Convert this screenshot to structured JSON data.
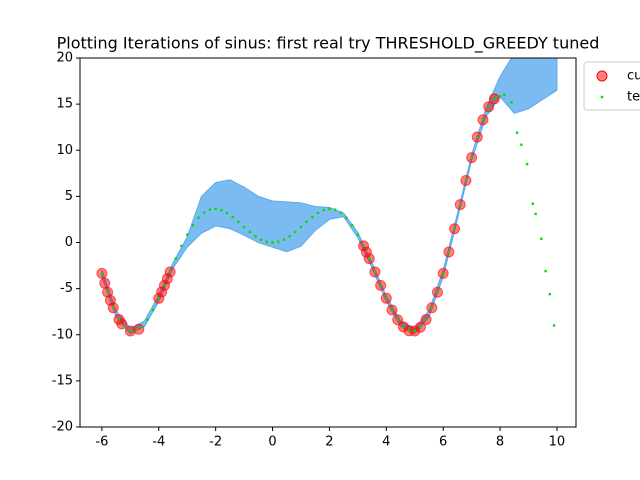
{
  "chart_data": {
    "type": "scatter",
    "title": "Plotting Iterations of sinus: first real try THRESHOLD_GREEDY tuned",
    "xlim": [
      -6.77,
      10.67
    ],
    "ylim": [
      -20,
      20
    ],
    "xticks": [
      -6,
      -4,
      -2,
      0,
      2,
      4,
      6,
      8,
      10
    ],
    "yticks": [
      -20,
      -15,
      -10,
      -5,
      0,
      5,
      10,
      15,
      20
    ],
    "legend": "outside-upper-right",
    "band": {
      "color": "#5aaaee",
      "x": [
        -6,
        -5.5,
        -5,
        -4.5,
        -4,
        -3.5,
        -3,
        -2.5,
        -2,
        -1.5,
        -1,
        -0.5,
        0,
        0.5,
        1,
        1.5,
        2,
        2.5,
        3,
        3.5,
        4,
        4.5,
        5,
        5.5,
        6,
        6.5,
        7,
        7.5,
        8,
        8.5,
        9,
        9.5,
        10
      ],
      "upper": [
        -3.0,
        -7.4,
        -9.3,
        -8.5,
        -5.7,
        -2.2,
        0.6,
        5.0,
        6.5,
        6.8,
        6.0,
        5.0,
        4.5,
        4.4,
        4.3,
        3.9,
        3.8,
        3.2,
        1.1,
        -2.2,
        -5.8,
        -8.5,
        -9.3,
        -7.4,
        -3.0,
        3.1,
        9.5,
        14.5,
        18.0,
        20.5,
        22.0,
        23.5,
        25.0
      ],
      "lower": [
        -3.7,
        -8.1,
        -9.9,
        -9.1,
        -6.4,
        -2.8,
        -0.5,
        1.0,
        1.8,
        1.5,
        0.8,
        0.0,
        -0.5,
        -1.0,
        -0.4,
        1.3,
        2.5,
        2.8,
        0.5,
        -2.8,
        -6.4,
        -9.1,
        -9.9,
        -8.1,
        -3.7,
        2.5,
        8.9,
        13.6,
        15.8,
        14.0,
        14.5,
        15.5,
        16.5
      ]
    },
    "series": [
      {
        "name": "cu",
        "color": "#ff0000",
        "marker": "circle",
        "x": [
          -6,
          -5.9,
          -5.8,
          -5.7,
          -5.6,
          -5.4,
          -5.3,
          -5.0,
          -4.7,
          -4.0,
          -3.9,
          -3.8,
          -3.7,
          -3.6,
          3.2,
          3.3,
          3.4,
          3.6,
          3.8,
          4.0,
          4.2,
          4.4,
          4.6,
          4.8,
          5.0,
          5.2,
          5.4,
          5.6,
          5.8,
          6.0,
          6.2,
          6.4,
          6.6,
          6.8,
          7.0,
          7.2,
          7.4,
          7.6,
          7.8
        ],
        "values": [
          -3.35,
          -4.41,
          -5.39,
          -6.28,
          -7.07,
          -8.35,
          -8.82,
          -9.59,
          -9.4,
          -6.05,
          -5.36,
          -4.65,
          -3.92,
          -3.19,
          -0.37,
          -1.04,
          -1.74,
          -3.19,
          -4.65,
          -6.05,
          -7.32,
          -8.37,
          -9.14,
          -9.56,
          -9.59,
          -9.19,
          -8.35,
          -7.07,
          -5.39,
          -3.35,
          -1.03,
          1.49,
          4.11,
          6.72,
          9.2,
          11.43,
          13.3,
          14.71,
          15.58
        ]
      },
      {
        "name": "te",
        "color": "#00dd00",
        "marker": "square",
        "x": [
          -6,
          -5.8,
          -5.6,
          -5.4,
          -5.2,
          -5,
          -4.8,
          -4.6,
          -4.4,
          -4.2,
          -4,
          -3.8,
          -3.6,
          -3.4,
          -3.2,
          -3,
          -2.8,
          -2.6,
          -2.4,
          -2.2,
          -2,
          -1.8,
          -1.6,
          -1.4,
          -1.2,
          -1,
          -0.8,
          -0.6,
          -0.4,
          -0.2,
          0,
          0.2,
          0.4,
          0.6,
          0.8,
          1,
          1.2,
          1.4,
          1.6,
          1.8,
          2,
          2.2,
          2.4,
          2.6,
          2.8,
          3,
          3.2,
          3.4,
          3.6,
          3.8,
          4,
          4.2,
          4.4,
          4.6,
          4.8,
          5,
          5.2,
          5.4,
          5.6,
          5.8,
          6,
          6.2,
          6.4,
          6.6,
          6.8,
          7,
          7.2,
          7.4,
          7.6,
          7.8,
          8,
          8.15,
          8.4,
          8.6,
          8.75,
          8.95,
          9.15,
          9.25,
          9.45,
          9.6,
          9.75,
          9.9
        ],
        "values": [
          -3.35,
          -5.39,
          -7.07,
          -8.35,
          -9.19,
          -9.59,
          -9.56,
          -9.14,
          -8.37,
          -7.32,
          -6.05,
          -4.65,
          -3.19,
          -1.74,
          -0.37,
          0.85,
          1.88,
          2.68,
          3.24,
          3.56,
          3.64,
          3.51,
          3.2,
          2.76,
          2.24,
          1.68,
          1.15,
          0.68,
          0.31,
          0.08,
          0,
          0.08,
          0.31,
          0.68,
          1.15,
          1.68,
          2.24,
          2.76,
          3.2,
          3.51,
          3.64,
          3.56,
          3.24,
          2.68,
          1.88,
          0.85,
          -0.37,
          -1.74,
          -3.19,
          -4.65,
          -6.05,
          -7.32,
          -8.37,
          -9.14,
          -9.56,
          -9.59,
          -9.19,
          -8.35,
          -7.07,
          -5.39,
          -3.35,
          -1.03,
          1.49,
          4.11,
          6.72,
          9.2,
          11.43,
          13.3,
          14.71,
          15.58,
          15.83,
          16.0,
          15.2,
          11.9,
          10.6,
          8.5,
          4.2,
          3.1,
          0.4,
          -3.1,
          -5.6,
          -9.0
        ]
      }
    ]
  }
}
